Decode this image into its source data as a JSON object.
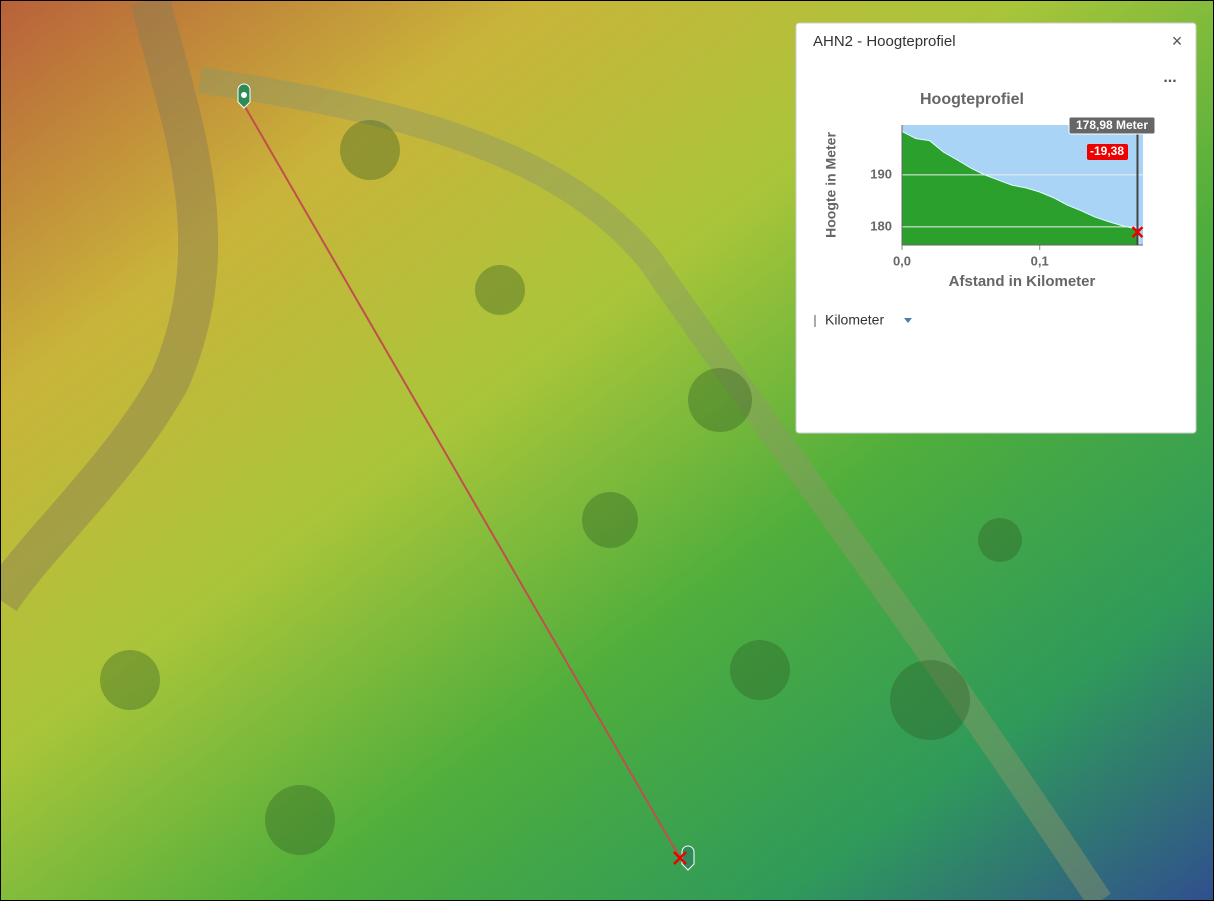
{
  "widget": {
    "title": "AHN2 - Hoogteprofiel",
    "close": "×",
    "menu": "...",
    "unit": "Kilometer"
  },
  "chart_data": {
    "type": "area",
    "title": "Hoogteprofiel",
    "x_label": "Afstand in Kilometer",
    "y_label": "Hoogte in Meter",
    "x": [
      0,
      0.01,
      0.02,
      0.03,
      0.04,
      0.05,
      0.06,
      0.07,
      0.08,
      0.09,
      0.1,
      0.11,
      0.12,
      0.13,
      0.14,
      0.15,
      0.16,
      0.17,
      0.172
    ],
    "values": [
      198.36,
      197,
      196.6,
      194.4,
      192.9,
      191.3,
      190,
      189,
      188,
      187.5,
      186.7,
      185.6,
      184.2,
      183.1,
      181.9,
      181,
      180.2,
      179.6,
      178.98
    ],
    "color": "#2ca02c",
    "xlim": [
      0,
      0.175
    ],
    "ylim": [
      176.5,
      199.6
    ],
    "xticks": [
      {
        "value": 0,
        "label": "0,0"
      },
      {
        "value": 0.1,
        "label": "0,1"
      }
    ],
    "yticks": [
      180,
      190
    ],
    "grid": true,
    "hover": {
      "x": 0.171,
      "value": 178.98,
      "label": "178,98 Meter",
      "change": -19.38,
      "change_label": "-19,38"
    }
  }
}
